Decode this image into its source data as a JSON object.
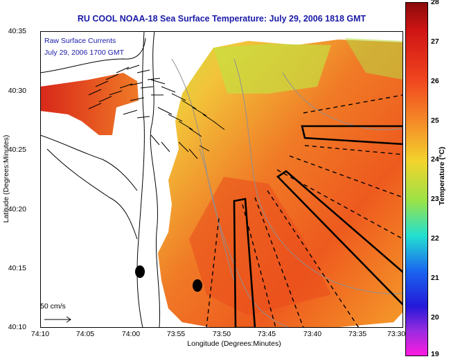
{
  "title": "RU COOL  NOAA-18  Sea Surface Temperature:  July 29, 2006 1818 GMT",
  "overlay": {
    "line1": "Raw Surface Currents",
    "line2": "July 29, 2006 1700 GMT"
  },
  "axes": {
    "xlabel": "Longitude (Degrees:Minutes)",
    "ylabel": "Latitude (Degrees:Minutes)",
    "xticks": [
      "74:10",
      "74:05",
      "74:00",
      "73:55",
      "73:50",
      "73:45",
      "73:40",
      "73:35",
      "73:30"
    ],
    "yticks": [
      "40:35",
      "40:30",
      "40:25",
      "40:20",
      "40:15",
      "40:10"
    ]
  },
  "scale_bar": {
    "label": "50 cm/s"
  },
  "colorbar": {
    "label": "Temperature (°C)",
    "ticks": [
      "28",
      "27",
      "26",
      "25",
      "24",
      "23",
      "22",
      "21",
      "20",
      "19"
    ],
    "range": [
      19,
      28
    ]
  },
  "colors": {
    "title": "#1a1aa8",
    "land": "#ffffff",
    "sst_warm": "#f06020"
  }
}
